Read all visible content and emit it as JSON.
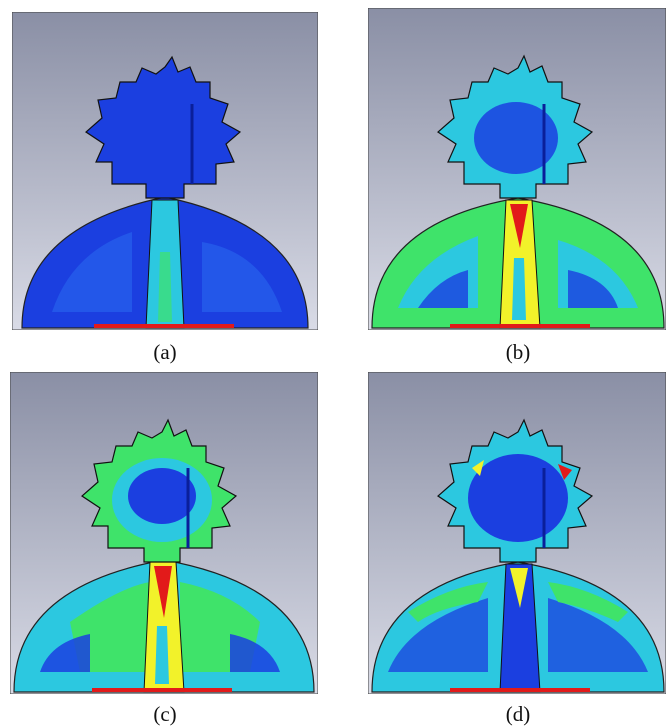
{
  "figure": {
    "panels": [
      {
        "caption": "(a)",
        "colormap": "blue-dominant"
      },
      {
        "caption": "(b)",
        "colormap": "mixed-green"
      },
      {
        "caption": "(c)",
        "colormap": "mixed-green-yellow"
      },
      {
        "caption": "(d)",
        "colormap": "blue-cyan"
      }
    ],
    "colors": {
      "background_top": "#8a8fa5",
      "background_bottom": "#d9dbe6",
      "field_blue": "#1b3fe0",
      "field_cyan": "#2cc8e0",
      "field_green": "#3fe36a",
      "field_yellow": "#f2f22a",
      "field_red": "#e21a1a"
    }
  }
}
